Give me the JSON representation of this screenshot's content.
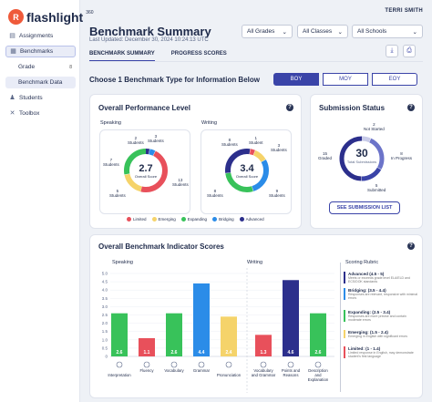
{
  "brand": {
    "logo_letter": "R",
    "name": "flashlight",
    "sup": "360"
  },
  "sidebar": {
    "items": [
      {
        "label": "Assignments",
        "icon": "document-icon"
      },
      {
        "label": "Benchmarks",
        "icon": "clipboard-icon"
      },
      {
        "label": "Grade",
        "badge": "8"
      },
      {
        "label": "Benchmark Data"
      },
      {
        "label": "Students",
        "icon": "users-icon"
      },
      {
        "label": "Toolbox",
        "icon": "tools-icon"
      }
    ]
  },
  "header": {
    "user": "TERRI SMITH",
    "title": "Benchmark Summary",
    "updated": "Last Updated: December 30, 2024 10:24:13 UTC",
    "filters": [
      "All Grades",
      "All Classes",
      "All Schools"
    ],
    "tabs": [
      "BENCHMARK SUMMARY",
      "PROGRESS SCORES"
    ]
  },
  "benchmark_type": {
    "prompt": "Choose 1 Benchmark Type for Information Below",
    "options": [
      "BOY",
      "MOY",
      "EOY"
    ],
    "selected": "BOY"
  },
  "performance": {
    "title": "Overall Performance Level",
    "speaking": {
      "label": "Speaking",
      "score": "2.7",
      "score_label": "Overall Score",
      "labels": [
        {
          "n": "2",
          "t": "Students"
        },
        {
          "n": "3",
          "t": "Students"
        },
        {
          "n": "7",
          "t": "Students"
        },
        {
          "n": "13",
          "t": "Students"
        },
        {
          "n": "5",
          "t": "Students"
        }
      ]
    },
    "writing": {
      "label": "Writing",
      "score": "3.4",
      "score_label": "Overall Score",
      "labels": [
        {
          "n": "8",
          "t": "Students"
        },
        {
          "n": "1",
          "t": "Student"
        },
        {
          "n": "3",
          "t": "Students"
        },
        {
          "n": "8",
          "t": "Students"
        },
        {
          "n": "9",
          "t": "Students"
        }
      ]
    },
    "legend": [
      {
        "label": "Limited",
        "color": "#e8505b"
      },
      {
        "label": "Emerging",
        "color": "#f5d36a"
      },
      {
        "label": "Expanding",
        "color": "#38c25a"
      },
      {
        "label": "Bridging",
        "color": "#2b8ce8"
      },
      {
        "label": "Advanced",
        "color": "#2c2f8c"
      }
    ]
  },
  "submission": {
    "title": "Submission Status",
    "total": "30",
    "total_label": "Total Submissions",
    "graded": {
      "n": "15",
      "t": "Graded"
    },
    "not_started": {
      "n": "2",
      "t": "Not Started"
    },
    "in_progress": {
      "n": "8",
      "t": "In Progress"
    },
    "submitted": {
      "n": "5",
      "t": "Submitted"
    },
    "button": "SEE SUBMISSION LIST"
  },
  "indicators": {
    "title": "Overall Benchmark Indicator Scores",
    "speaking_label": "Speaking",
    "writing_label": "Writing",
    "rubric_title": "Scoring Rubric",
    "rubric": [
      {
        "label": "Advanced (4.5 - 5)",
        "desc": "Meets or exceeds grade level ELA/ELD and ECS/DOK standards",
        "color": "#2c2f8c"
      },
      {
        "label": "Bridging: (3.5 - 4.4)",
        "desc": "Responses are relevant, responsive with minimal errors",
        "color": "#2b8ce8"
      },
      {
        "label": "Expanding: (2.5 - 3.4)",
        "desc": "Responses are more precise and contain moderate errors",
        "color": "#38c25a"
      },
      {
        "label": "Emerging: (1.5 - 2.4)",
        "desc": "Emerging in English with significant errors",
        "color": "#f5d36a"
      },
      {
        "label": "Limited: (1 - 1.4)",
        "desc": "Limited response in English, may demonstrate student's first language",
        "color": "#e8505b"
      }
    ]
  },
  "chart_data": {
    "type": "bar",
    "ylim": [
      0,
      5
    ],
    "yticks": [
      "5.0",
      "4.5",
      "4.0",
      "3.5",
      "3.0",
      "2.5",
      "2.0",
      "1.5",
      "1.0",
      "0.5",
      "0"
    ],
    "groups": [
      {
        "name": "Speaking",
        "categories": [
          "Interpretation",
          "Fluency",
          "Vocabulary",
          "Grammar",
          "Pronunciation"
        ],
        "values": [
          2.6,
          1.1,
          2.6,
          4.4,
          2.4
        ],
        "colors": [
          "#38c25a",
          "#e8505b",
          "#38c25a",
          "#2b8ce8",
          "#f5d36a"
        ],
        "labels": [
          "2.6",
          "1.1",
          "2.6",
          "4.4",
          "2.4"
        ]
      },
      {
        "name": "Writing",
        "categories": [
          "Vocabulary and Grammar",
          "Points and Reasons",
          "Description and Explanation"
        ],
        "values": [
          1.3,
          4.6,
          2.6
        ],
        "colors": [
          "#e8505b",
          "#2c2f8c",
          "#38c25a"
        ],
        "labels": [
          "1.3",
          "4.6",
          "2.6"
        ]
      }
    ]
  }
}
